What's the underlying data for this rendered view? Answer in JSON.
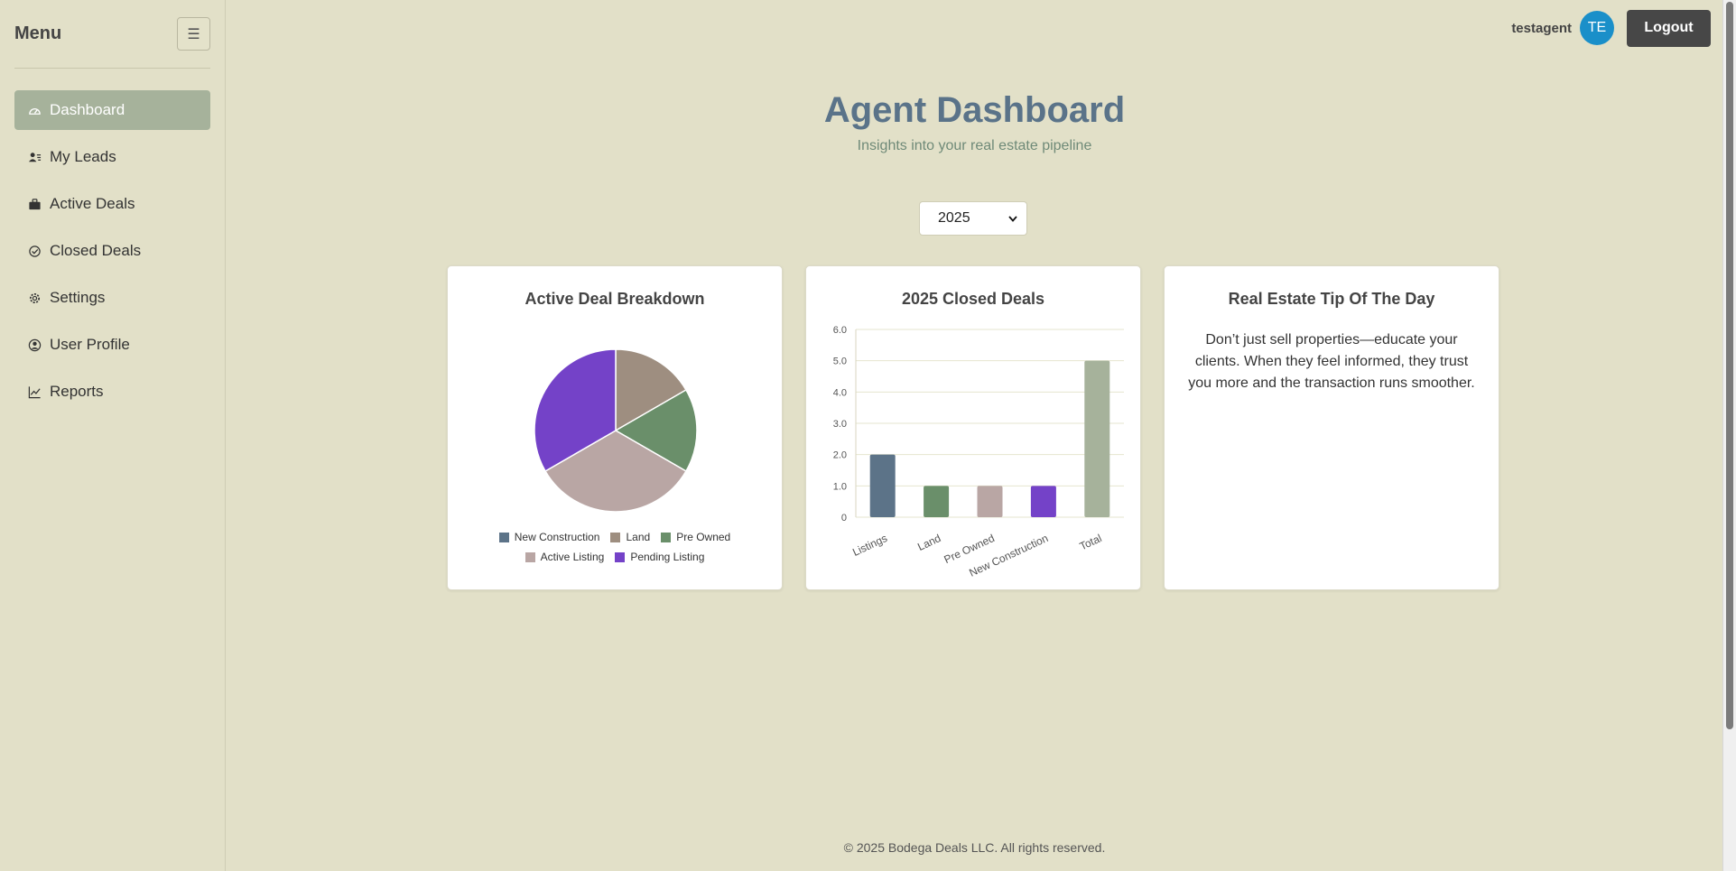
{
  "sidebar": {
    "title": "Menu",
    "items": [
      {
        "label": "Dashboard",
        "icon": "gauge-icon",
        "active": true
      },
      {
        "label": "My Leads",
        "icon": "users-icon"
      },
      {
        "label": "Active Deals",
        "icon": "briefcase-icon"
      },
      {
        "label": "Closed Deals",
        "icon": "check-circle-icon"
      },
      {
        "label": "Settings",
        "icon": "gear-icon"
      },
      {
        "label": "User Profile",
        "icon": "user-circle-icon"
      },
      {
        "label": "Reports",
        "icon": "line-chart-icon"
      }
    ]
  },
  "topbar": {
    "username": "testagent",
    "avatar_initials": "TE",
    "logout_label": "Logout"
  },
  "page": {
    "title": "Agent Dashboard",
    "subtitle": "Insights into your real estate pipeline"
  },
  "year_select": {
    "value": "2025"
  },
  "cards": {
    "active_breakdown_title": "Active Deal Breakdown",
    "closed_deals_title": "2025 Closed Deals",
    "tip_title": "Real Estate Tip Of The Day",
    "tip_text": "Don’t just sell properties—educate your clients. When they feel informed, they trust you more and the transaction runs smoother."
  },
  "chart_data": [
    {
      "type": "pie",
      "title": "Active Deal Breakdown",
      "categories": [
        "New Construction",
        "Land",
        "Pre Owned",
        "Active Listing",
        "Pending Listing"
      ],
      "values": [
        0,
        1,
        1,
        2,
        2
      ],
      "colors": [
        "#5c7388",
        "#9e8e80",
        "#6a8f6a",
        "#b9a6a4",
        "#7442c8"
      ],
      "legend_position": "bottom"
    },
    {
      "type": "bar",
      "title": "2025 Closed Deals",
      "categories": [
        "Listings",
        "Land",
        "Pre Owned",
        "New Construction",
        "Total"
      ],
      "values": [
        2,
        1,
        1,
        1,
        5
      ],
      "colors": [
        "#5c7388",
        "#6a8f6a",
        "#b9a6a4",
        "#7442c8",
        "#a6b29b"
      ],
      "ylim": [
        0,
        6
      ],
      "yticks": [
        "0",
        "1.0",
        "2.0",
        "3.0",
        "4.0",
        "5.0",
        "6.0"
      ],
      "grid": true
    }
  ],
  "footer": {
    "text": "© 2025 Bodega Deals LLC. All rights reserved."
  }
}
